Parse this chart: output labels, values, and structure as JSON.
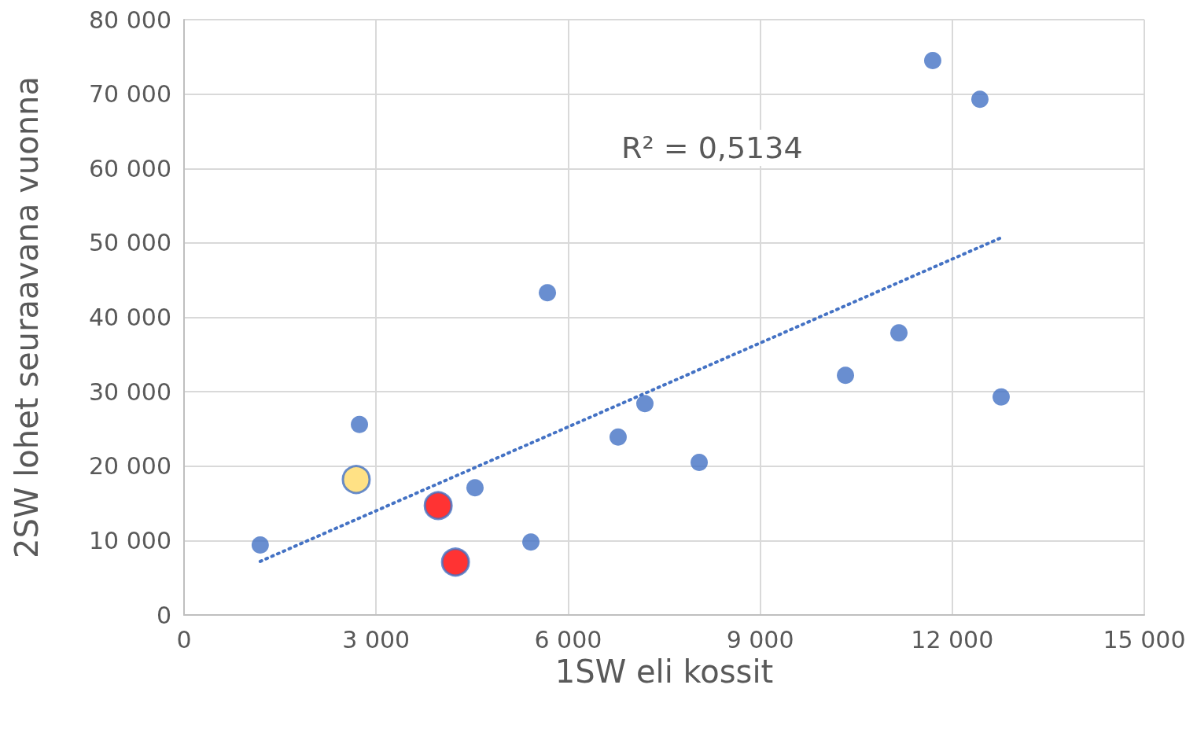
{
  "chart_data": {
    "type": "scatter",
    "xlabel": "1SW eli kossit",
    "ylabel": "2SW lohet seuraavana vuonna",
    "xlim": [
      0,
      15000
    ],
    "xticks": [
      0,
      {
        "value": 3000,
        "label": "3 000"
      },
      {
        "value": 6000,
        "label": "6 000"
      },
      {
        "value": 9000,
        "label": "9 000"
      },
      {
        "value": 12000,
        "label": "12 000"
      },
      {
        "value": 15000,
        "label": "15 000"
      }
    ],
    "ylim": [
      0,
      80000
    ],
    "yticks": [
      0,
      {
        "value": 10000,
        "label": "10 000"
      },
      {
        "value": 20000,
        "label": "20 000"
      },
      {
        "value": 30000,
        "label": "30 000"
      },
      {
        "value": 40000,
        "label": "40 000"
      },
      {
        "value": 50000,
        "label": "50 000"
      },
      {
        "value": 60000,
        "label": "60 000"
      },
      {
        "value": 70000,
        "label": "70 000"
      },
      {
        "value": 80000,
        "label": "80 000"
      }
    ],
    "grid": true,
    "marker": "circle",
    "annotations": [
      "R² = 0,5134"
    ],
    "series": [
      {
        "color": "#4472c4",
        "x": [
          1190,
          2740,
          4545,
          5418,
          5676,
          6781,
          7199,
          8047,
          10332,
          11167,
          11695,
          12432,
          12764
        ],
        "values": [
          9400,
          25600,
          17100,
          9800,
          43300,
          23900,
          28400,
          20500,
          32200,
          37900,
          74500,
          69300,
          29300
        ]
      },
      {
        "color": "#ffd966",
        "x": [
          2690
        ],
        "values": [
          18200
        ]
      },
      {
        "color": "#ff0000",
        "x": [
          3970,
          4240
        ],
        "values": [
          14700,
          7100
        ]
      },
      {
        "type": "line",
        "color": "#4472c4",
        "line_style": "dotted",
        "marker": "none",
        "x": [
          1190,
          12764
        ],
        "values": [
          7200,
          50700
        ]
      }
    ]
  }
}
